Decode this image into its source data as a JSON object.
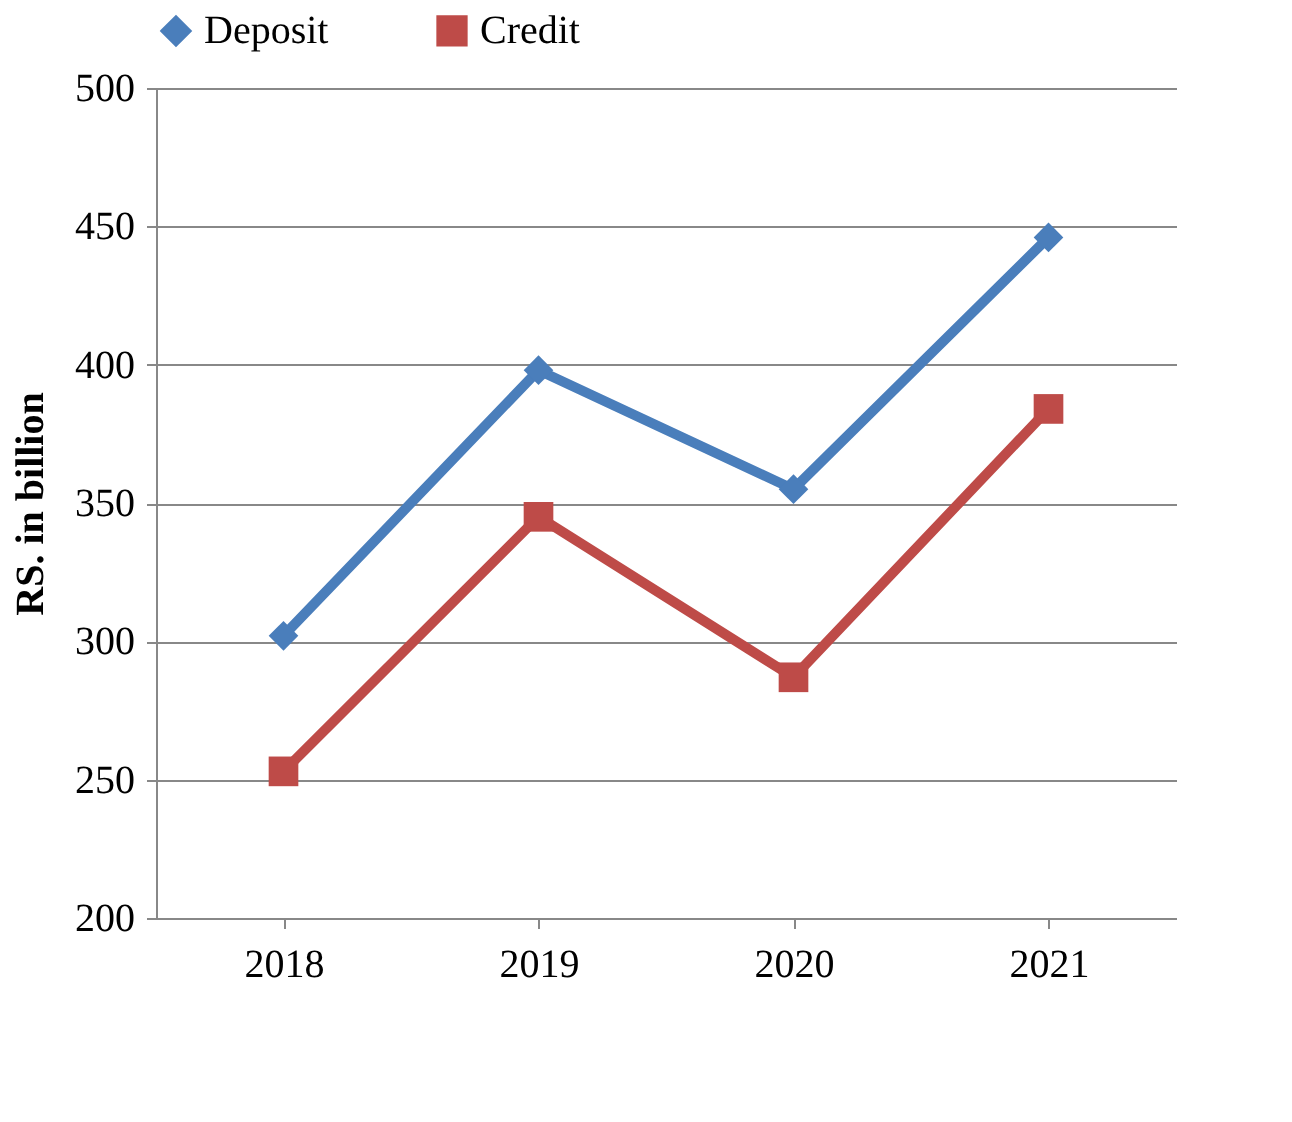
{
  "chart_data": {
    "type": "line",
    "ylabel": "RS. in billion",
    "categories": [
      "2018",
      "2019",
      "2020",
      "2021"
    ],
    "series": [
      {
        "name": "Deposit",
        "color": "#4a7ebb",
        "marker": "diamond",
        "values": [
          302,
          398,
          355,
          446
        ]
      },
      {
        "name": "Credit",
        "color": "#be4b48",
        "marker": "square",
        "values": [
          253,
          345,
          287,
          384
        ]
      }
    ],
    "ylim": [
      200,
      500
    ],
    "yticks": [
      200,
      250,
      300,
      350,
      400,
      450,
      500
    ],
    "grid": "y",
    "legend": "top",
    "line_style": "solid"
  }
}
